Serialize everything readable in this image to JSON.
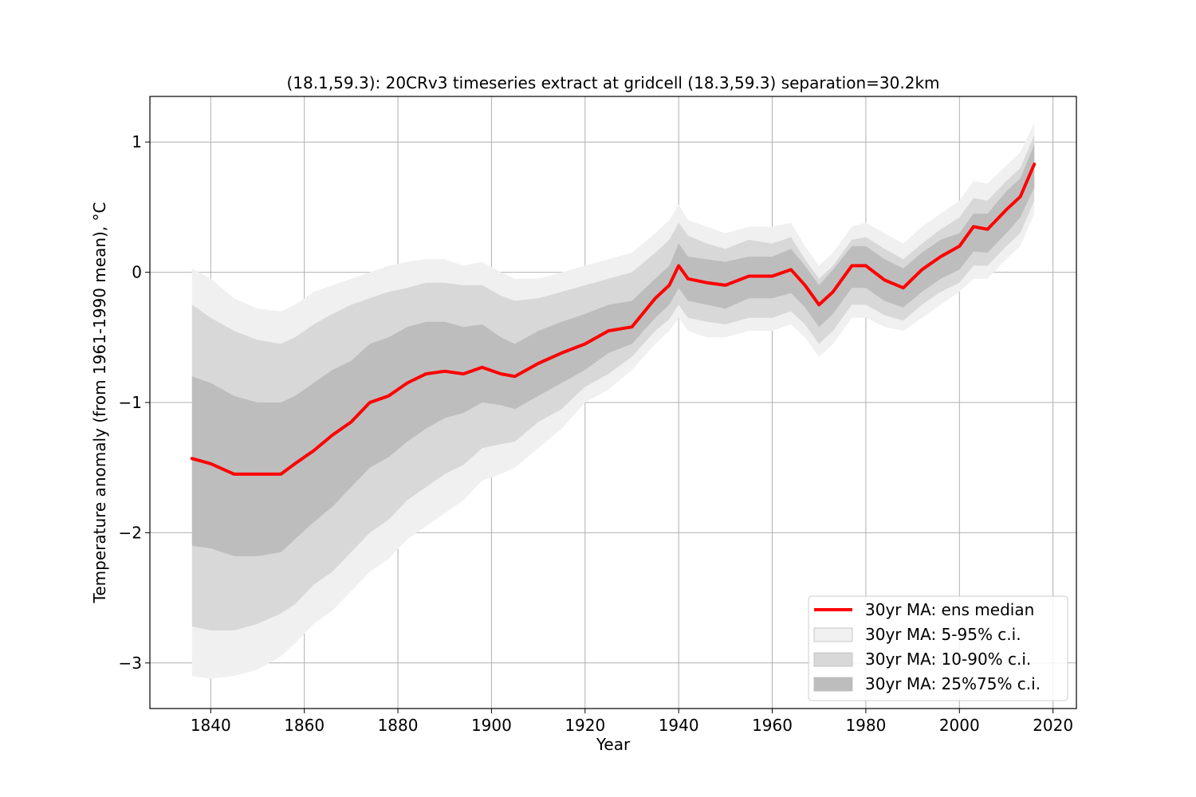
{
  "chart_data": {
    "type": "area",
    "title": "(18.1,59.3): 20CRv3 timeseries extract at gridcell (18.3,59.3) separation=30.2km",
    "xlabel": "Year",
    "ylabel": "Temperature anomaly (from 1961-1990 mean), °C",
    "xlim": [
      1827,
      2025
    ],
    "ylim": [
      -3.35,
      1.35
    ],
    "xticks": [
      1840,
      1860,
      1880,
      1900,
      1920,
      1940,
      1960,
      1980,
      2000,
      2020
    ],
    "yticks": [
      -3,
      -2,
      -1,
      0,
      1
    ],
    "grid": true,
    "legend_position": "lower-right",
    "x": [
      1836,
      1840,
      1845,
      1850,
      1855,
      1858,
      1862,
      1866,
      1870,
      1874,
      1878,
      1882,
      1886,
      1890,
      1894,
      1898,
      1902,
      1905,
      1910,
      1915,
      1920,
      1925,
      1930,
      1935,
      1938,
      1940,
      1942,
      1946,
      1950,
      1955,
      1960,
      1964,
      1967,
      1970,
      1973,
      1977,
      1980,
      1984,
      1988,
      1992,
      1996,
      2000,
      2003,
      2006,
      2010,
      2013,
      2016
    ],
    "series": [
      {
        "name": "30yr MA: ens median",
        "color": "#ff0000",
        "values": [
          -1.43,
          -1.47,
          -1.55,
          -1.55,
          -1.55,
          -1.47,
          -1.37,
          -1.25,
          -1.15,
          -1.0,
          -0.95,
          -0.85,
          -0.78,
          -0.76,
          -0.78,
          -0.73,
          -0.78,
          -0.8,
          -0.7,
          -0.62,
          -0.55,
          -0.45,
          -0.42,
          -0.2,
          -0.1,
          0.05,
          -0.05,
          -0.08,
          -0.1,
          -0.03,
          -0.03,
          0.02,
          -0.1,
          -0.25,
          -0.15,
          0.05,
          0.05,
          -0.06,
          -0.12,
          0.02,
          0.12,
          0.2,
          0.35,
          0.33,
          0.48,
          0.58,
          0.83
        ]
      }
    ],
    "bands": [
      {
        "name": "30yr MA: 5-95% c.i.",
        "color": "#f0f0f0",
        "lower": [
          -3.1,
          -3.12,
          -3.1,
          -3.05,
          -2.95,
          -2.85,
          -2.7,
          -2.6,
          -2.45,
          -2.3,
          -2.2,
          -2.05,
          -1.95,
          -1.85,
          -1.75,
          -1.6,
          -1.55,
          -1.5,
          -1.35,
          -1.2,
          -1.0,
          -0.9,
          -0.75,
          -0.55,
          -0.45,
          -0.35,
          -0.45,
          -0.5,
          -0.5,
          -0.45,
          -0.45,
          -0.4,
          -0.5,
          -0.65,
          -0.55,
          -0.35,
          -0.35,
          -0.42,
          -0.45,
          -0.35,
          -0.25,
          -0.15,
          -0.05,
          -0.05,
          0.1,
          0.2,
          0.45
        ],
        "upper": [
          0.03,
          -0.05,
          -0.2,
          -0.28,
          -0.3,
          -0.25,
          -0.15,
          -0.1,
          -0.05,
          0.0,
          0.05,
          0.08,
          0.1,
          0.1,
          0.05,
          0.08,
          0.0,
          -0.05,
          -0.05,
          0.0,
          0.05,
          0.1,
          0.15,
          0.3,
          0.4,
          0.52,
          0.4,
          0.35,
          0.3,
          0.35,
          0.35,
          0.38,
          0.2,
          0.05,
          0.15,
          0.35,
          0.38,
          0.3,
          0.22,
          0.35,
          0.45,
          0.55,
          0.7,
          0.68,
          0.82,
          0.92,
          1.15
        ]
      },
      {
        "name": "30yr MA: 10-90% c.i.",
        "color": "#d8d8d8",
        "lower": [
          -2.72,
          -2.75,
          -2.75,
          -2.7,
          -2.62,
          -2.55,
          -2.4,
          -2.3,
          -2.15,
          -2.0,
          -1.9,
          -1.75,
          -1.65,
          -1.55,
          -1.48,
          -1.35,
          -1.32,
          -1.3,
          -1.15,
          -1.05,
          -0.88,
          -0.78,
          -0.65,
          -0.45,
          -0.36,
          -0.25,
          -0.35,
          -0.38,
          -0.4,
          -0.35,
          -0.35,
          -0.3,
          -0.4,
          -0.55,
          -0.45,
          -0.25,
          -0.25,
          -0.33,
          -0.37,
          -0.25,
          -0.15,
          -0.08,
          0.05,
          0.05,
          0.2,
          0.3,
          0.55
        ],
        "upper": [
          -0.25,
          -0.35,
          -0.45,
          -0.52,
          -0.55,
          -0.5,
          -0.4,
          -0.32,
          -0.25,
          -0.2,
          -0.15,
          -0.12,
          -0.08,
          -0.08,
          -0.1,
          -0.1,
          -0.18,
          -0.22,
          -0.2,
          -0.15,
          -0.1,
          -0.05,
          0.0,
          0.15,
          0.25,
          0.38,
          0.28,
          0.22,
          0.18,
          0.25,
          0.22,
          0.27,
          0.1,
          -0.05,
          0.05,
          0.25,
          0.27,
          0.18,
          0.1,
          0.22,
          0.33,
          0.42,
          0.57,
          0.55,
          0.7,
          0.8,
          1.05
        ]
      },
      {
        "name": "30yr MA: 25%75% c.i.",
        "color": "#bdbdbd",
        "lower": [
          -2.1,
          -2.12,
          -2.18,
          -2.18,
          -2.15,
          -2.05,
          -1.92,
          -1.8,
          -1.65,
          -1.5,
          -1.42,
          -1.3,
          -1.2,
          -1.12,
          -1.08,
          -1.0,
          -1.02,
          -1.05,
          -0.95,
          -0.85,
          -0.75,
          -0.62,
          -0.55,
          -0.35,
          -0.25,
          -0.12,
          -0.22,
          -0.25,
          -0.28,
          -0.2,
          -0.2,
          -0.16,
          -0.27,
          -0.42,
          -0.32,
          -0.12,
          -0.12,
          -0.22,
          -0.27,
          -0.15,
          -0.05,
          0.02,
          0.16,
          0.15,
          0.3,
          0.42,
          0.65
        ],
        "upper": [
          -0.8,
          -0.85,
          -0.95,
          -1.0,
          -1.0,
          -0.95,
          -0.85,
          -0.75,
          -0.68,
          -0.55,
          -0.5,
          -0.42,
          -0.38,
          -0.38,
          -0.42,
          -0.4,
          -0.5,
          -0.55,
          -0.45,
          -0.38,
          -0.32,
          -0.25,
          -0.22,
          -0.05,
          0.05,
          0.22,
          0.12,
          0.1,
          0.08,
          0.12,
          0.12,
          0.18,
          0.05,
          -0.1,
          0.02,
          0.2,
          0.2,
          0.1,
          0.03,
          0.15,
          0.25,
          0.3,
          0.45,
          0.45,
          0.62,
          0.72,
          0.98
        ]
      }
    ]
  }
}
